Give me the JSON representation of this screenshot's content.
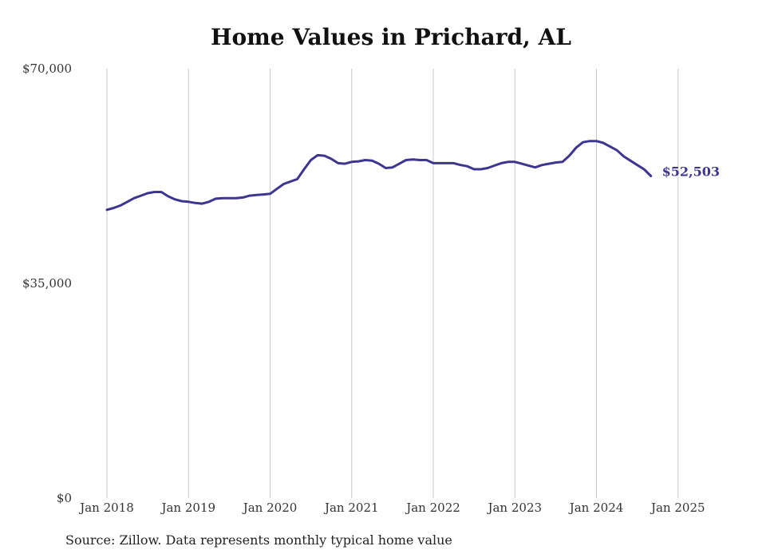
{
  "title": "Home Values in Prichard, AL",
  "source": "Source: Zillow. Data represents monthly typical home value",
  "chart_data": {
    "type": "line",
    "title": "Home Values in Prichard, AL",
    "xlabel": "",
    "ylabel": "",
    "ylim": [
      0,
      70000
    ],
    "yticks": [
      {
        "value": 0,
        "label": "$0"
      },
      {
        "value": 35000,
        "label": "$35,000"
      },
      {
        "value": 70000,
        "label": "$70,000"
      }
    ],
    "xticks": [
      "Jan 2018",
      "Jan 2019",
      "Jan 2020",
      "Jan 2021",
      "Jan 2022",
      "Jan 2023",
      "Jan 2024",
      "Jan 2025"
    ],
    "grid": "vertical",
    "color": "#3d3590",
    "end_label": "$52,503",
    "series": [
      {
        "x_start": "Jan 2018",
        "frequency": "monthly",
        "values": [
          47000,
          47300,
          47700,
          48300,
          48900,
          49300,
          49700,
          49900,
          49900,
          49200,
          48700,
          48400,
          48300,
          48100,
          48000,
          48300,
          48800,
          48900,
          48900,
          48900,
          49000,
          49300,
          49400,
          49500,
          49600,
          50400,
          51200,
          51600,
          52000,
          53600,
          55100,
          55900,
          55800,
          55300,
          54600,
          54500,
          54800,
          54900,
          55100,
          55000,
          54500,
          53800,
          53900,
          54500,
          55100,
          55200,
          55100,
          55100,
          54600,
          54600,
          54600,
          54600,
          54300,
          54100,
          53600,
          53600,
          53800,
          54200,
          54600,
          54800,
          54800,
          54500,
          54200,
          53900,
          54300,
          54500,
          54700,
          54800,
          55800,
          57100,
          58000,
          58200,
          58200,
          57900,
          57300,
          56700,
          55700,
          55000,
          54300,
          53600,
          52503
        ]
      }
    ]
  }
}
